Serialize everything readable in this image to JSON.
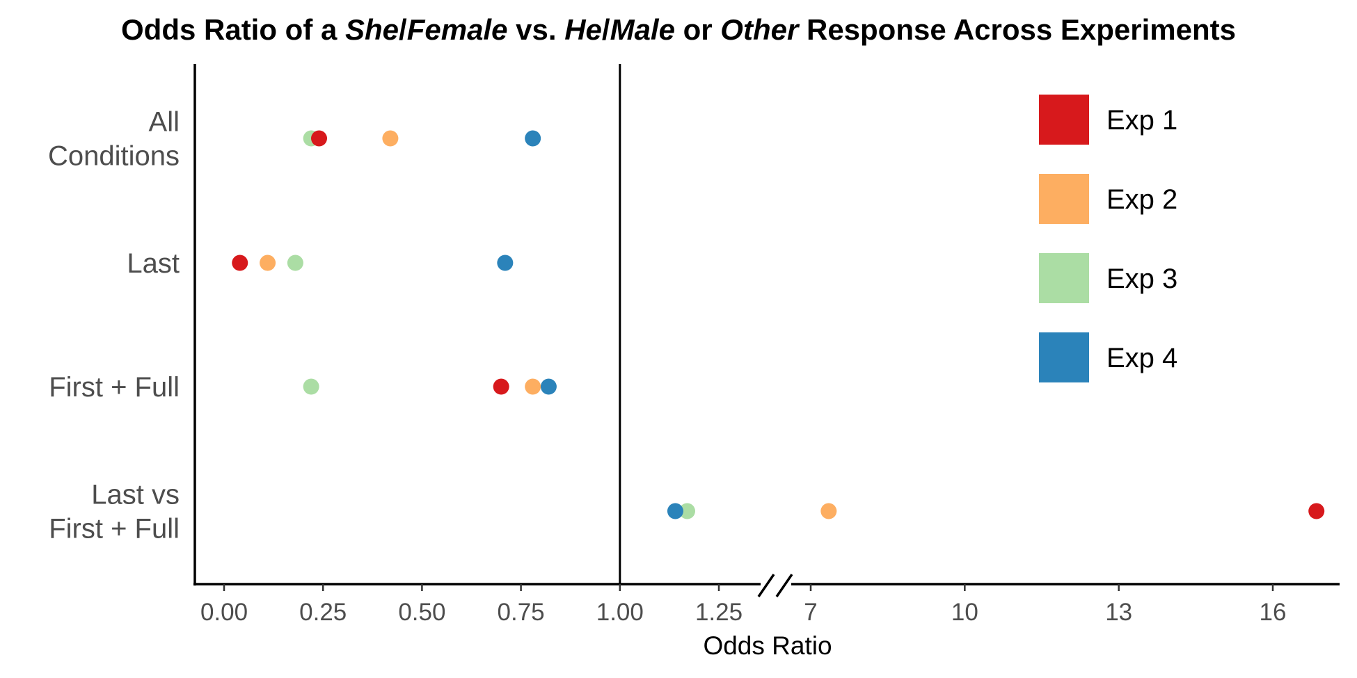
{
  "chart_data": {
    "type": "scatter",
    "title_parts": [
      {
        "text": "Odds Ratio of a ",
        "italic": false
      },
      {
        "text": "She",
        "italic": true
      },
      {
        "text": "/",
        "italic": false
      },
      {
        "text": "Female",
        "italic": true
      },
      {
        "text": " vs. ",
        "italic": false
      },
      {
        "text": "He",
        "italic": true
      },
      {
        "text": "/",
        "italic": false
      },
      {
        "text": "Male",
        "italic": true
      },
      {
        "text": " or ",
        "italic": false
      },
      {
        "text": "Other",
        "italic": true
      },
      {
        "text": " Response Across Experiments",
        "italic": false
      }
    ],
    "xlabel": "Odds Ratio",
    "ylabel": "",
    "categories": [
      {
        "lines": [
          "All",
          "Conditions"
        ]
      },
      {
        "lines": [
          "Last"
        ]
      },
      {
        "lines": [
          "First + Full"
        ]
      },
      {
        "lines": [
          "Last vs",
          "First + Full"
        ]
      }
    ],
    "x_axis": {
      "break_after": 1.25,
      "segment1": {
        "ticks": [
          0.0,
          0.25,
          0.5,
          0.75,
          1.0,
          1.25
        ],
        "tick_labels": [
          "0.00",
          "0.25",
          "0.50",
          "0.75",
          "1.00",
          "1.25"
        ]
      },
      "segment2": {
        "ticks": [
          7,
          10,
          13,
          16
        ],
        "tick_labels": [
          "7",
          "10",
          "13",
          "16"
        ]
      }
    },
    "reference_line": 1.0,
    "grid": false,
    "legend_position": "top-right",
    "series": [
      {
        "name": "Exp 1",
        "color": "#d7191c",
        "values": [
          0.24,
          0.04,
          0.7,
          16.85
        ]
      },
      {
        "name": "Exp 2",
        "color": "#fdae61",
        "values": [
          0.42,
          0.11,
          0.78,
          7.35
        ]
      },
      {
        "name": "Exp 3",
        "color": "#abdda4",
        "values": [
          0.22,
          0.18,
          0.22,
          1.17
        ]
      },
      {
        "name": "Exp 4",
        "color": "#2b83ba",
        "values": [
          0.78,
          0.71,
          0.82,
          1.14
        ]
      }
    ]
  }
}
